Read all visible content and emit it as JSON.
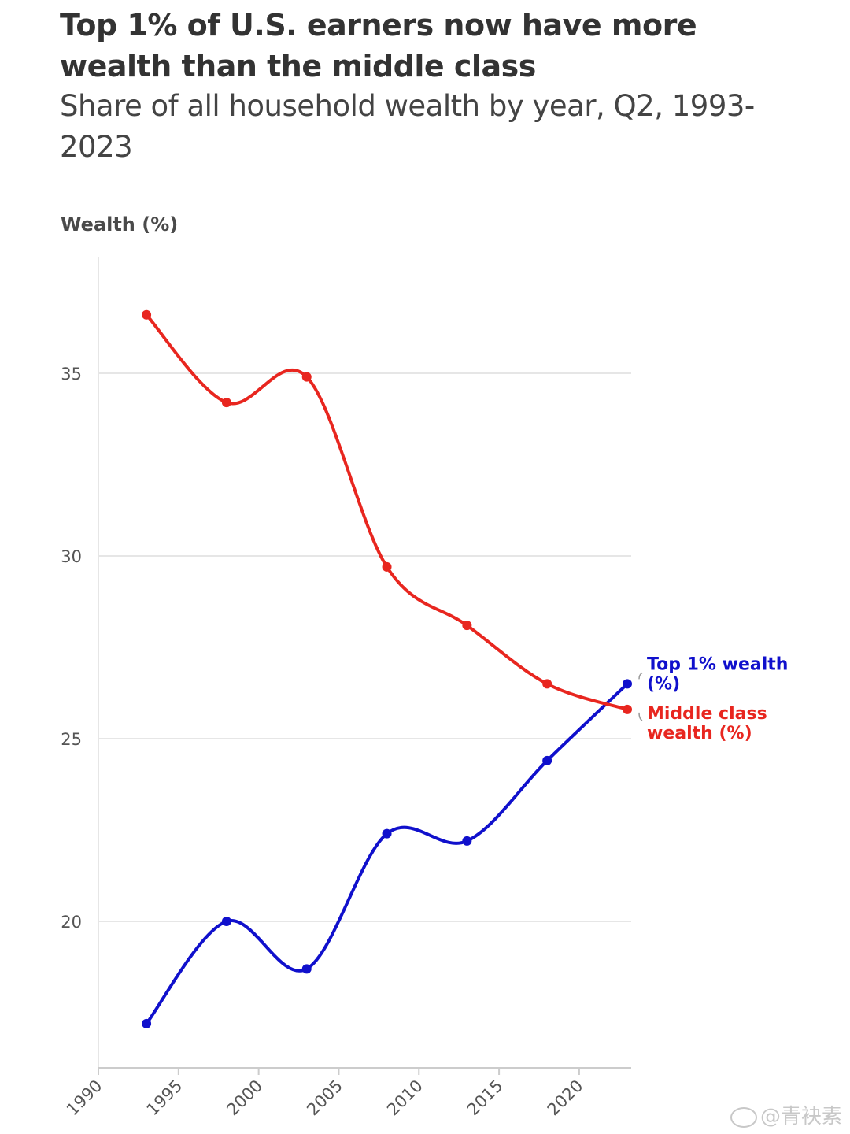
{
  "title": "Top 1% of U.S. earners now have more wealth than the middle class",
  "subtitle": "Share of all household wealth by year, Q2, 1993-2023",
  "watermark": "@青袂素",
  "colors": {
    "top1": "#1010cc",
    "middle": "#e8261f",
    "grid": "#e6e6e6",
    "axis": "#cccccc"
  },
  "chart_data": {
    "type": "line",
    "xlabel": "",
    "ylabel": "Wealth (%)",
    "xlim": [
      1990,
      2023
    ],
    "ylim": [
      16,
      38.2
    ],
    "x_ticks": [
      1990,
      1995,
      2000,
      2005,
      2010,
      2015,
      2020
    ],
    "y_ticks": [
      20,
      25,
      30,
      35
    ],
    "grid": "horizontal",
    "legend": "direct labels at right end of lines",
    "x": [
      1993,
      1998,
      2003,
      2008,
      2013,
      2018,
      2023
    ],
    "series": [
      {
        "name": "Top 1% wealth (%)",
        "label_lines": [
          "Top 1% wealth",
          "(%)"
        ],
        "color": "#1010cc",
        "values": [
          17.2,
          20.0,
          18.7,
          22.4,
          22.2,
          24.4,
          26.5
        ]
      },
      {
        "name": "Middle class wealth (%)",
        "label_lines": [
          "Middle class",
          "wealth (%)"
        ],
        "color": "#e8261f",
        "values": [
          36.6,
          34.2,
          34.9,
          29.7,
          28.1,
          26.5,
          25.8
        ]
      }
    ]
  }
}
